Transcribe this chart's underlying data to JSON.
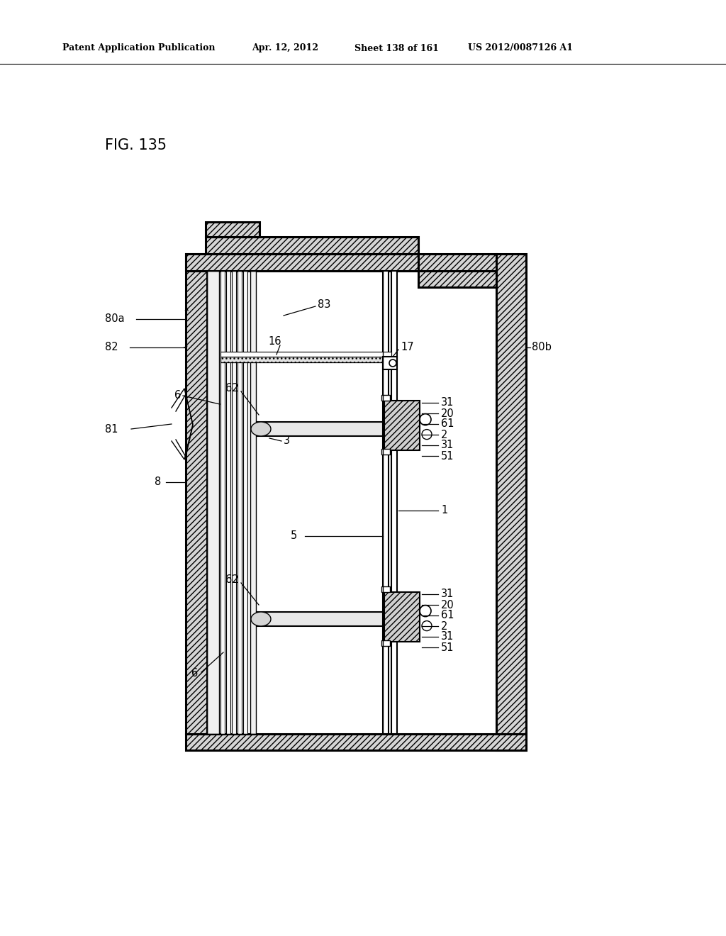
{
  "bg_color": "#ffffff",
  "header_text": "Patent Application Publication",
  "header_date": "Apr. 12, 2012",
  "header_sheet": "Sheet 138 of 161",
  "header_patent": "US 2012/0087126 A1",
  "fig_label": "FIG. 135"
}
